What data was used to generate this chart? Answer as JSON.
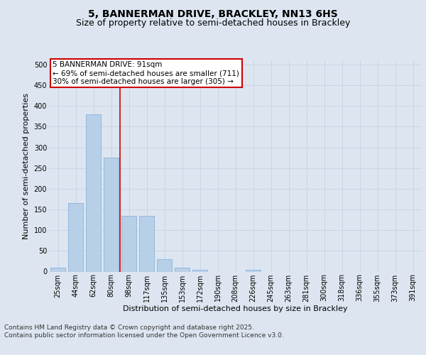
{
  "title_line1": "5, BANNERMAN DRIVE, BRACKLEY, NN13 6HS",
  "title_line2": "Size of property relative to semi-detached houses in Brackley",
  "xlabel": "Distribution of semi-detached houses by size in Brackley",
  "ylabel": "Number of semi-detached properties",
  "categories": [
    "25sqm",
    "44sqm",
    "62sqm",
    "80sqm",
    "98sqm",
    "117sqm",
    "135sqm",
    "153sqm",
    "172sqm",
    "190sqm",
    "208sqm",
    "226sqm",
    "245sqm",
    "263sqm",
    "281sqm",
    "300sqm",
    "318sqm",
    "336sqm",
    "355sqm",
    "373sqm",
    "391sqm"
  ],
  "values": [
    10,
    165,
    380,
    275,
    135,
    135,
    30,
    10,
    5,
    0,
    0,
    5,
    0,
    0,
    0,
    0,
    0,
    0,
    0,
    0,
    0
  ],
  "bar_color": "#b8cfe8",
  "bar_edge_color": "#7aadda",
  "vline_x": 3.5,
  "vline_color": "#cc0000",
  "annotation_text": "5 BANNERMAN DRIVE: 91sqm\n← 69% of semi-detached houses are smaller (711)\n30% of semi-detached houses are larger (305) →",
  "annotation_box_color": "#ffffff",
  "annotation_box_edge_color": "#cc0000",
  "ylim": [
    0,
    510
  ],
  "yticks": [
    0,
    50,
    100,
    150,
    200,
    250,
    300,
    350,
    400,
    450,
    500
  ],
  "grid_color": "#c8d4e8",
  "bg_color": "#dde6f0",
  "plot_bg_color": "#dde6f0",
  "footer_text": "Contains HM Land Registry data © Crown copyright and database right 2025.\nContains public sector information licensed under the Open Government Licence v3.0.",
  "title_fontsize": 10,
  "subtitle_fontsize": 9,
  "axis_label_fontsize": 8,
  "tick_fontsize": 7,
  "annotation_fontsize": 7.5,
  "footer_fontsize": 6.5
}
